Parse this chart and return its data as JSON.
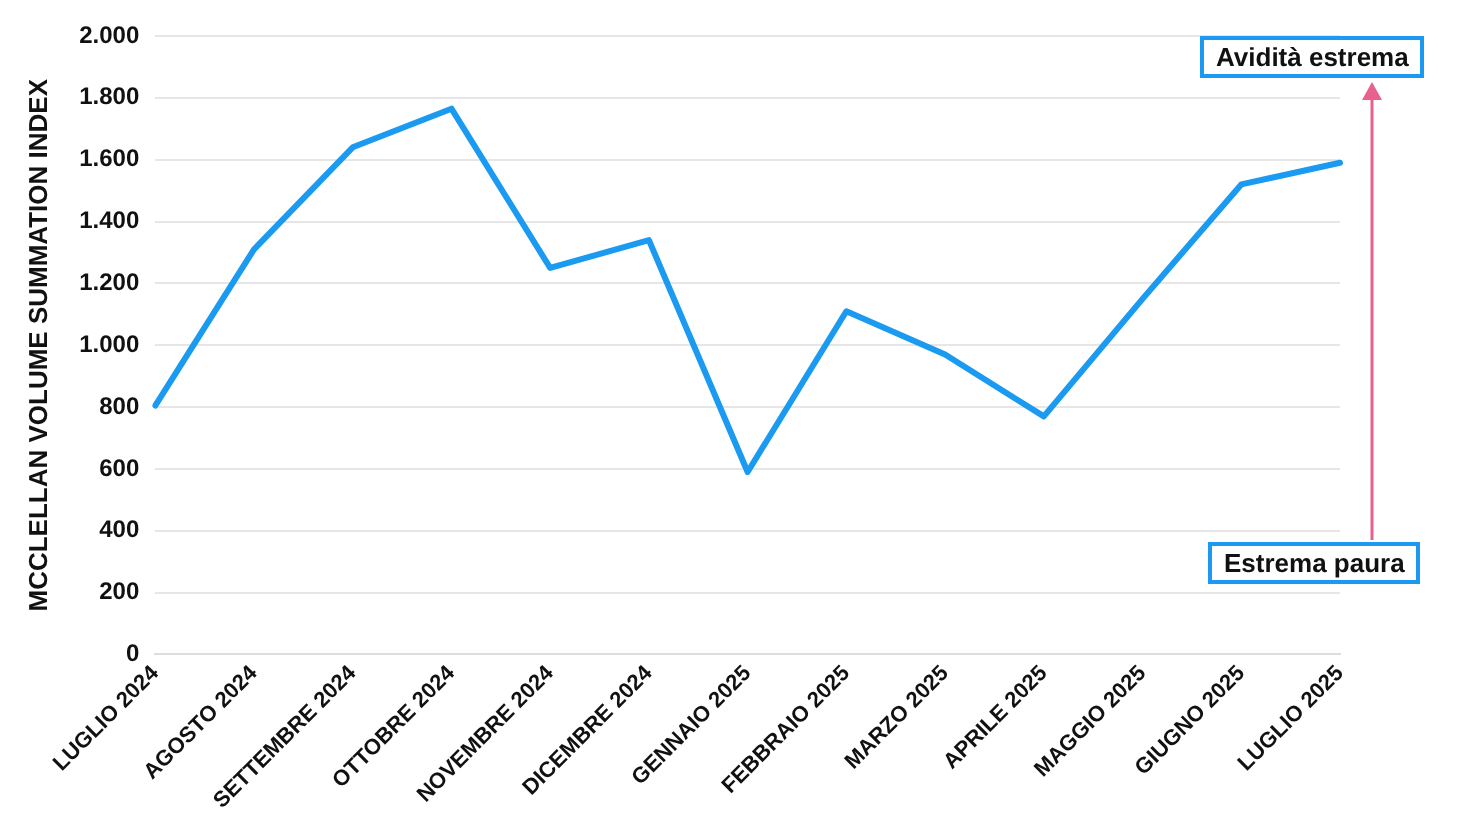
{
  "chart_data": {
    "type": "line",
    "ylabel": "MCCLELLAN VOLUME SUMMATION INDEX",
    "categories": [
      "LUGLIO 2024",
      "AGOSTO 2024",
      "SETTEMBRE 2024",
      "OTTOBRE 2024",
      "NOVEMBRE 2024",
      "DICEMBRE 2024",
      "GENNAIO 2025",
      "FEBBRAIO 2025",
      "MARZO 2025",
      "APRILE 2025",
      "MAGGIO 2025",
      "GIUGNO 2025",
      "LUGLIO 2025"
    ],
    "series": [
      {
        "color": "#1a9af0",
        "values": [
          805,
          1310,
          1640,
          1765,
          1250,
          1340,
          590,
          1110,
          970,
          770,
          1150,
          1520,
          1590
        ]
      }
    ],
    "ylim": [
      0,
      2000
    ],
    "yticks": [
      0,
      {
        "value": 200,
        "label": "200"
      },
      {
        "value": 400,
        "label": "400"
      },
      {
        "value": 600,
        "label": "600"
      },
      {
        "value": 800,
        "label": "800"
      },
      {
        "value": 1000,
        "label": "1.000"
      },
      {
        "value": 1200,
        "label": "1.200"
      },
      {
        "value": 1400,
        "label": "1.400"
      },
      {
        "value": 1600,
        "label": "1.600"
      },
      {
        "value": 1800,
        "label": "1.800"
      },
      {
        "value": 2000,
        "label": "2.000"
      }
    ],
    "grid": "y",
    "marker": "none",
    "line_style": "solid",
    "annotations": [
      "Avidità estrema",
      "Estrema paura"
    ]
  }
}
